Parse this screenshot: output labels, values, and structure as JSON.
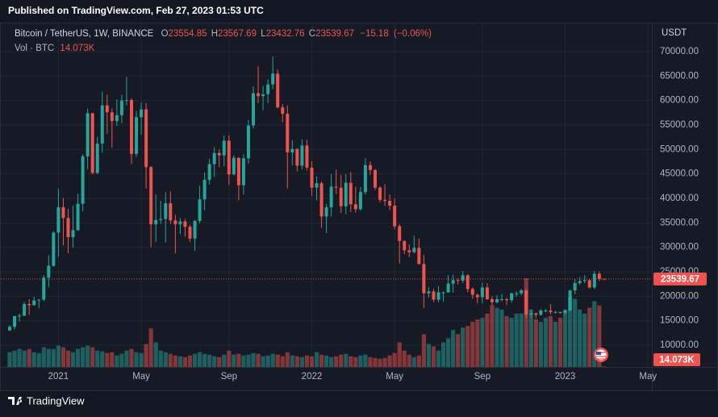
{
  "published": "Published on TradingView.com, Feb 27, 2023 01:53 UTC",
  "footer": "TradingView",
  "chart_data": {
    "type": "candlestick",
    "title": "Bitcoin / TetherUS, 1W, BINANCE",
    "currency": "USDT",
    "legend_labels": [
      "O",
      "H",
      "L",
      "C"
    ],
    "change": {
      "value": -15.18,
      "label": "−15.18"
    },
    "change_percent": {
      "value": -0.06,
      "label": "(−0.06%)"
    },
    "volume_title": "Vol · BTC",
    "last_volume_label": "14.073K",
    "up_color": "#26a69a",
    "down_color": "#ef5350",
    "grid": true,
    "ylim": [
      5550,
      75600
    ],
    "yticks": [
      {
        "value": 10000,
        "label": "10000.00"
      },
      {
        "value": 15000,
        "label": "15000.00"
      },
      {
        "value": 20000,
        "label": "20000.00"
      },
      {
        "value": 25000,
        "label": "25000.00"
      },
      {
        "value": 30000,
        "label": "30000.00"
      },
      {
        "value": 35000,
        "label": "35000.00"
      },
      {
        "value": 40000,
        "label": "40000.00"
      },
      {
        "value": 45000,
        "label": "45000.00"
      },
      {
        "value": 50000,
        "label": "50000.00"
      },
      {
        "value": 55000,
        "label": "55000.00"
      },
      {
        "value": 60000,
        "label": "60000.00"
      },
      {
        "value": 65000,
        "label": "65000.00"
      },
      {
        "value": 70000,
        "label": "70000.00"
      }
    ],
    "categories": [
      null,
      null,
      null,
      null,
      null,
      null,
      null,
      null,
      null,
      null,
      "2021",
      null,
      null,
      null,
      null,
      null,
      null,
      null,
      null,
      null,
      null,
      null,
      null,
      null,
      null,
      null,
      null,
      "May",
      null,
      null,
      null,
      null,
      null,
      null,
      null,
      null,
      null,
      null,
      null,
      null,
      null,
      null,
      null,
      null,
      null,
      "Sep",
      null,
      null,
      null,
      null,
      null,
      null,
      null,
      null,
      null,
      null,
      null,
      null,
      null,
      null,
      null,
      null,
      "2022",
      null,
      null,
      null,
      null,
      null,
      null,
      null,
      null,
      null,
      null,
      null,
      null,
      null,
      null,
      null,
      null,
      "May",
      null,
      null,
      null,
      null,
      null,
      null,
      null,
      null,
      null,
      null,
      null,
      null,
      null,
      null,
      null,
      null,
      null,
      "Sep",
      null,
      null,
      null,
      null,
      null,
      null,
      null,
      null,
      null,
      null,
      null,
      null,
      null,
      null,
      null,
      null,
      "2023",
      null,
      null,
      null,
      null,
      null,
      null,
      null,
      null,
      null,
      null,
      null,
      null,
      null,
      null,
      null,
      null,
      "May"
    ],
    "open": [
      13031,
      13761,
      15957,
      16053,
      18400,
      18185,
      19150,
      19300,
      23800,
      26240,
      33000,
      38200,
      36000,
      32100,
      33500,
      38900,
      48600,
      57400,
      45200,
      51200,
      59000,
      57600,
      55800,
      57000,
      60000,
      60100,
      49100,
      56600,
      58200,
      46400,
      34700,
      35600,
      35800,
      39000,
      35500,
      34700,
      35300,
      34200,
      31800,
      35400,
      39800,
      43800,
      47000,
      49300,
      48800,
      51800,
      44900,
      48300,
      42700,
      48200,
      54900,
      61500,
      60900,
      61300,
      63300,
      65500,
      58600,
      57300,
      49400,
      50100,
      46700,
      50800,
      46300,
      42200,
      43100,
      36300,
      38200,
      42400,
      42200,
      38400,
      43200,
      38800,
      37800,
      41300,
      46800,
      45800,
      42200,
      39700,
      39500,
      38500,
      34300,
      31300,
      29400,
      29000,
      29900,
      26600,
      20600,
      21000,
      19300,
      20800,
      20800,
      22600,
      23300,
      23200,
      24300,
      21500,
      20300,
      19800,
      21800,
      19400,
      18800,
      19400,
      19400,
      19200,
      20600,
      20600,
      21200,
      16300,
      16500,
      16200,
      17100,
      17100,
      16800,
      16800,
      16600,
      17100,
      21200,
      22700,
      23100,
      23300,
      21800,
      24600,
      23554.85,
      null,
      null,
      null,
      null,
      null,
      null,
      null,
      null,
      null
    ],
    "high": [
      14100,
      15960,
      16480,
      18800,
      19400,
      19900,
      19420,
      24300,
      28400,
      33300,
      41950,
      40100,
      37850,
      38500,
      40950,
      49000,
      58350,
      57500,
      52600,
      61800,
      61200,
      58400,
      60200,
      61200,
      64850,
      60500,
      57900,
      59600,
      59500,
      46600,
      40800,
      39500,
      41300,
      41400,
      36600,
      36000,
      35800,
      34600,
      35600,
      42600,
      45300,
      48100,
      50500,
      50000,
      52900,
      52900,
      48800,
      48400,
      49000,
      56000,
      62900,
      67000,
      63000,
      64300,
      69000,
      66300,
      59300,
      59000,
      51900,
      50300,
      52100,
      52000,
      47600,
      44500,
      43500,
      38900,
      45000,
      45900,
      44800,
      45000,
      45400,
      42400,
      42300,
      48200,
      47600,
      46000,
      42500,
      42900,
      40800,
      40000,
      34700,
      31400,
      30600,
      32400,
      31800,
      28500,
      21900,
      21500,
      22100,
      21000,
      24300,
      24400,
      23600,
      25200,
      24500,
      21800,
      20600,
      22800,
      22700,
      20000,
      20200,
      20500,
      19700,
      20800,
      21000,
      21500,
      21500,
      17200,
      16700,
      17400,
      17400,
      18400,
      17000,
      16800,
      17200,
      21300,
      23400,
      23900,
      24300,
      23500,
      25200,
      25100,
      23567.69,
      null,
      null,
      null,
      null,
      null,
      null,
      null,
      null,
      null
    ],
    "low": [
      12950,
      13250,
      14850,
      15950,
      16200,
      18100,
      17600,
      19000,
      21900,
      26000,
      28130,
      30420,
      28800,
      29900,
      33400,
      37350,
      46000,
      44900,
      44950,
      49300,
      53200,
      50400,
      54800,
      55400,
      59000,
      47000,
      48500,
      53000,
      42000,
      30000,
      31100,
      34800,
      31000,
      34800,
      28800,
      32700,
      32200,
      31100,
      29300,
      34900,
      37600,
      42800,
      44400,
      46400,
      46600,
      42800,
      44700,
      39600,
      40800,
      47100,
      54300,
      59500,
      58000,
      59500,
      62300,
      58400,
      55600,
      42000,
      46800,
      45500,
      45900,
      45700,
      40500,
      39600,
      34000,
      32900,
      36300,
      40900,
      37000,
      36800,
      37200,
      37100,
      37500,
      40800,
      44800,
      41700,
      39200,
      38500,
      37600,
      33700,
      26700,
      28600,
      28000,
      28800,
      26500,
      17600,
      19700,
      18800,
      18800,
      18900,
      20700,
      20700,
      22400,
      22700,
      20800,
      19500,
      18500,
      18600,
      19300,
      18100,
      18500,
      19000,
      18200,
      18700,
      19900,
      20200,
      15500,
      15800,
      15500,
      16000,
      16700,
      16300,
      16500,
      16400,
      16300,
      17000,
      20400,
      22300,
      22700,
      21600,
      21500,
      23100,
      23432.76,
      null,
      null,
      null,
      null,
      null,
      null,
      null,
      null,
      null
    ],
    "close": [
      13761,
      15957,
      16053,
      18400,
      18185,
      19150,
      19300,
      23800,
      26240,
      33000,
      38200,
      36000,
      32100,
      33500,
      38900,
      48600,
      57400,
      45200,
      51200,
      59000,
      57600,
      55800,
      57000,
      60000,
      60100,
      49100,
      56600,
      58200,
      46400,
      34700,
      35600,
      35800,
      39000,
      35500,
      34700,
      35300,
      34200,
      31800,
      35400,
      39800,
      43800,
      47000,
      49300,
      48800,
      51800,
      44900,
      48300,
      42700,
      48200,
      54900,
      61500,
      60900,
      61300,
      63300,
      65500,
      58600,
      57300,
      49400,
      50100,
      46700,
      50800,
      46300,
      42200,
      43100,
      36300,
      38200,
      42400,
      42200,
      38400,
      43200,
      38800,
      37800,
      41300,
      46800,
      45800,
      42200,
      39700,
      39500,
      38500,
      34300,
      31300,
      29400,
      29000,
      29900,
      26600,
      20600,
      21000,
      19300,
      20800,
      20800,
      22600,
      23300,
      23200,
      24300,
      21500,
      20300,
      19800,
      21800,
      19400,
      18800,
      19400,
      19400,
      19200,
      20600,
      20600,
      21200,
      16300,
      16500,
      16200,
      17100,
      17100,
      16800,
      16800,
      16600,
      17100,
      21200,
      22700,
      23100,
      23300,
      21800,
      24600,
      23554.85,
      23539.67,
      null,
      null,
      null,
      null,
      null,
      null,
      null,
      null,
      null
    ],
    "volume": [
      450000,
      500000,
      550000,
      500000,
      550000,
      450000,
      425000,
      600000,
      550000,
      550000,
      650000,
      600000,
      500000,
      450000,
      550000,
      600000,
      650000,
      600000,
      500000,
      475000,
      425000,
      450000,
      350000,
      400000,
      500000,
      550000,
      450000,
      425000,
      700000,
      1175000,
      750000,
      500000,
      450000,
      400000,
      350000,
      325000,
      300000,
      350000,
      400000,
      450000,
      400000,
      375000,
      325000,
      300000,
      375000,
      500000,
      375000,
      400000,
      350000,
      375000,
      425000,
      400000,
      325000,
      350000,
      400000,
      375000,
      325000,
      450000,
      350000,
      325000,
      300000,
      350000,
      325000,
      450000,
      375000,
      350000,
      300000,
      325000,
      375000,
      400000,
      325000,
      300000,
      350000,
      375000,
      300000,
      275000,
      250000,
      275000,
      350000,
      425000,
      750000,
      500000,
      375000,
      300000,
      350000,
      1000000,
      700000,
      625000,
      500000,
      750000,
      875000,
      1125000,
      1000000,
      1200000,
      1250000,
      1375000,
      1450000,
      1500000,
      1625000,
      1875000,
      1800000,
      1750000,
      1550000,
      1500000,
      1625000,
      1625000,
      2700000,
      1750000,
      1450000,
      1375000,
      1500000,
      1550000,
      1375000,
      1500000,
      1750000,
      2125000,
      2075000,
      1750000,
      1625000,
      1800000,
      2000000,
      1875000,
      14073,
      null,
      null,
      null,
      null,
      null,
      null,
      null,
      null,
      null
    ]
  }
}
